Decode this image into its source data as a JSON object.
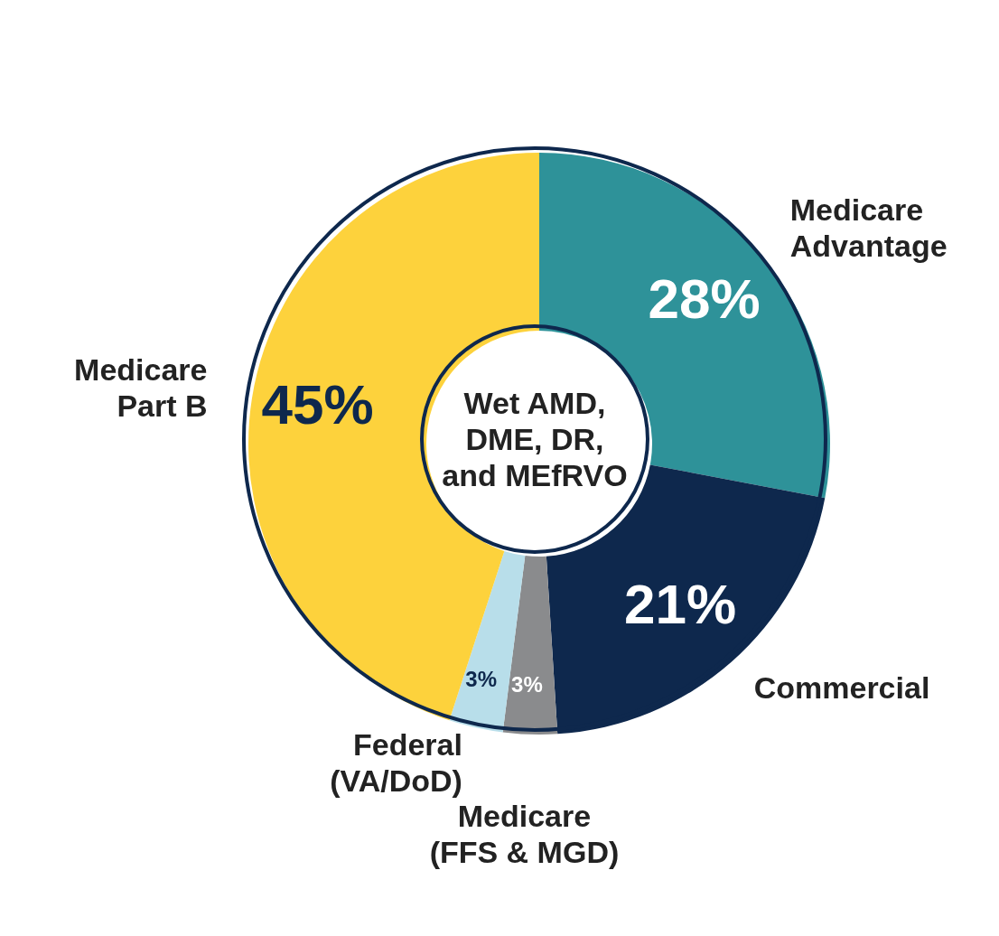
{
  "chart_data": {
    "type": "donut",
    "title": "Wet AMD, DME, DR, and MEfRVO",
    "categories": [
      "Medicare Advantage",
      "Commercial",
      "Medicare (FFS & MGD)",
      "Federal (VA/DoD)",
      "Medicare Part B"
    ],
    "values": [
      28,
      21,
      3,
      3,
      45
    ],
    "colors": [
      "#2e9299",
      "#0e284d",
      "#8a8b8d",
      "#b8deea",
      "#fdd23c"
    ],
    "value_labels": [
      "28%",
      "21%",
      "3%",
      "3%",
      "45%"
    ],
    "legend": false
  }
}
